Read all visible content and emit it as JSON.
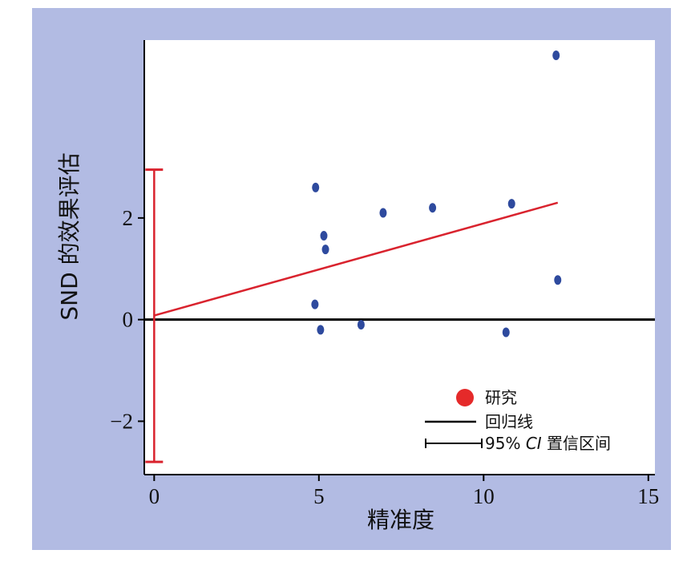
{
  "chart_data": {
    "type": "scatter",
    "xlabel": "精准度",
    "ylabel": "SND 的效果评估",
    "xlim": [
      -0.3,
      15.2
    ],
    "ylim": [
      -3.05,
      5.5
    ],
    "x_ticks": [
      {
        "value": 0,
        "label": "0"
      },
      {
        "value": 5,
        "label": "5"
      },
      {
        "value": 10,
        "label": "10"
      },
      {
        "value": 15,
        "label": "15"
      }
    ],
    "y_ticks": [
      {
        "value": -2,
        "label": "−2"
      },
      {
        "value": 0,
        "label": "0"
      },
      {
        "value": 2,
        "label": "2"
      }
    ],
    "grid": false,
    "legend_position": "bottom-right",
    "series": [
      {
        "name": "研究",
        "kind": "points",
        "color": "#2e4a9e",
        "points": [
          {
            "x": 4.9,
            "y": 2.6
          },
          {
            "x": 5.15,
            "y": 1.65
          },
          {
            "x": 5.2,
            "y": 1.38
          },
          {
            "x": 4.88,
            "y": 0.3
          },
          {
            "x": 5.05,
            "y": -0.2
          },
          {
            "x": 6.28,
            "y": -0.1
          },
          {
            "x": 6.95,
            "y": 2.1
          },
          {
            "x": 8.45,
            "y": 2.2
          },
          {
            "x": 10.68,
            "y": -0.25
          },
          {
            "x": 10.85,
            "y": 2.28
          },
          {
            "x": 12.2,
            "y": 5.2
          },
          {
            "x": 12.25,
            "y": 0.78
          }
        ]
      },
      {
        "name": "回归线",
        "kind": "line",
        "color": "#d9232e",
        "points": [
          {
            "x": 0,
            "y": 0.08
          },
          {
            "x": 12.25,
            "y": 2.3
          }
        ]
      },
      {
        "name": "95% CI 置信区间",
        "kind": "errorbar",
        "color": "#d9232e",
        "x": 0,
        "low": -2.8,
        "high": 2.95
      }
    ],
    "reference_line": {
      "y": 0,
      "color": "#000000"
    }
  },
  "legend": {
    "study_label": "研究",
    "line_label": "回归线",
    "ci_prefix": "95%",
    "ci_italic": "CI",
    "ci_suffix": "置信区间",
    "marker_color": "#e52a2a",
    "line_color": "#000000"
  },
  "colors": {
    "panel_background": "#b2bbe3",
    "plot_background": "#ffffff",
    "axis": "#000000"
  }
}
